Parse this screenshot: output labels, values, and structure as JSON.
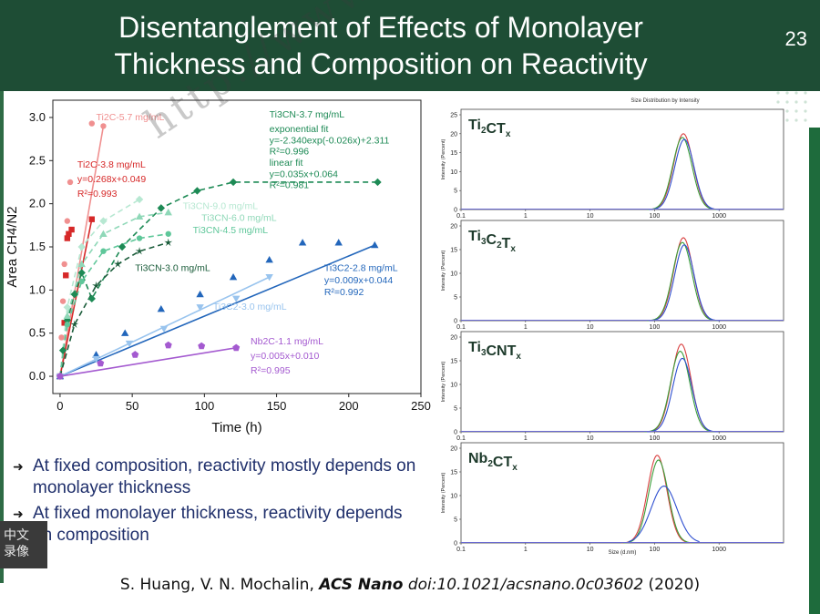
{
  "slide": {
    "title_line1": "Disentanglement of Effects of Monolayer",
    "title_line2": "Thickness and Composition on Reactivity",
    "page_number": "23",
    "bullets": [
      "At fixed composition, reactivity mostly depends on monolayer thickness",
      "At fixed monolayer thickness, reactivity depends on composition"
    ],
    "citation": {
      "authors": "S. Huang, V. N. Mochalin,",
      "journal": "ACS Nano",
      "doi": "doi:10.1021/acsnano.0c03602",
      "year": "(2020)"
    },
    "watermark": "http://www.nanomxenes.com",
    "stamp_text": "中文 录像"
  },
  "colors": {
    "title_bg": "#1e4d35",
    "ti2c_red": "#d62828",
    "ti2c_pink": "#f09090",
    "ti3cn_green": "#1d8a55",
    "ti3cn_light": "#8fd8b8",
    "ti3c2_blue": "#2266bb",
    "ti3c2_light": "#99c4ee",
    "nb2c_purple": "#a45ad0"
  },
  "chart_data": [
    {
      "type": "scatter",
      "xlabel": "Time (h)",
      "ylabel": "Area CH4/N2",
      "xlim": [
        -5,
        250
      ],
      "ylim": [
        -0.2,
        3.2
      ],
      "xticks": [
        "0",
        "50",
        "100",
        "150",
        "200",
        "250"
      ],
      "yticks": [
        "0.0",
        "0.5",
        "1.0",
        "1.5",
        "2.0",
        "2.5",
        "3.0"
      ],
      "series": [
        {
          "name": "Ti2C-5.7 mg/mL",
          "color": "#f09090",
          "marker": "circle",
          "x": [
            0,
            1,
            2,
            3,
            5,
            7,
            22,
            30
          ],
          "y": [
            0,
            0.45,
            0.87,
            1.3,
            1.8,
            2.25,
            2.93,
            2.9
          ],
          "fit": "line"
        },
        {
          "name": "Ti2C-3.8 mg/mL",
          "color": "#d62828",
          "marker": "square",
          "x": [
            0,
            3,
            4,
            5,
            6,
            8,
            22
          ],
          "y": [
            0,
            0.62,
            1.17,
            1.6,
            1.65,
            1.7,
            1.82
          ],
          "fit_label": [
            "y=0.268x+0.049",
            "R²=0.993"
          ],
          "fit": "line"
        },
        {
          "name": "Ti3CN-3.7 mg/mL",
          "color": "#1d8a55",
          "marker": "diamond",
          "x": [
            0,
            2,
            5,
            10,
            15,
            22,
            43,
            70,
            95,
            120,
            220
          ],
          "y": [
            0,
            0.3,
            0.65,
            0.95,
            1.2,
            0.9,
            1.5,
            1.95,
            2.15,
            2.25,
            2.25
          ],
          "fit_label": [
            "exponential fit",
            "y=-2.340exp(-0.026x)+2.311",
            "R²=0.996",
            "linear fit",
            "y=0.035x+0.064",
            "R²=0.981"
          ],
          "fit": "exponential"
        },
        {
          "name": "Ti3CN-9.0 mg/mL",
          "color": "#b7e8d2",
          "marker": "diamond",
          "x": [
            0,
            5,
            15,
            30,
            55
          ],
          "y": [
            0,
            0.8,
            1.5,
            1.8,
            2.05
          ],
          "fit": "exponential"
        },
        {
          "name": "Ti3CN-6.0 mg/mL",
          "color": "#8fd8b8",
          "marker": "triangle",
          "x": [
            0,
            5,
            15,
            30,
            55,
            75
          ],
          "y": [
            0,
            0.7,
            1.3,
            1.65,
            1.85,
            1.9
          ],
          "fit": "exponential"
        },
        {
          "name": "Ti3CN-4.5 mg/mL",
          "color": "#5fc79a",
          "marker": "circle",
          "x": [
            0,
            5,
            15,
            30,
            55,
            75
          ],
          "y": [
            0,
            0.6,
            1.1,
            1.45,
            1.6,
            1.65
          ],
          "fit": "exponential"
        },
        {
          "name": "Ti3CN-3.0 mg/mL",
          "color": "#1a5c3a",
          "marker": "star",
          "x": [
            0,
            10,
            25,
            40,
            55,
            75
          ],
          "y": [
            0,
            0.6,
            1.05,
            1.3,
            1.45,
            1.55
          ],
          "fit": "exponential"
        },
        {
          "name": "Ti3C2-2.8 mg/mL",
          "color": "#2266bb",
          "marker": "triangle",
          "x": [
            0,
            25,
            45,
            70,
            97,
            120,
            145,
            168,
            193,
            218
          ],
          "y": [
            0,
            0.25,
            0.5,
            0.78,
            0.95,
            1.15,
            1.35,
            1.55,
            1.55,
            1.52
          ],
          "fit_label": [
            "y=0.009x+0.044",
            "R²=0.992"
          ],
          "fit": "line"
        },
        {
          "name": "Ti3C2-3.0 mg/mL",
          "color": "#99c4ee",
          "marker": "triangle-down",
          "x": [
            0,
            25,
            48,
            72,
            97,
            122,
            145
          ],
          "y": [
            0,
            0.2,
            0.38,
            0.55,
            0.8,
            0.9,
            1.15
          ],
          "fit": "line"
        },
        {
          "name": "Nb2C-1.1 mg/mL",
          "color": "#a45ad0",
          "marker": "pentagon",
          "x": [
            0,
            28,
            52,
            75,
            98,
            122
          ],
          "y": [
            0,
            0.15,
            0.25,
            0.36,
            0.35,
            0.33
          ],
          "fit_label": [
            "y=0.005x+0.010",
            "R²=0.995"
          ],
          "fit": "line"
        }
      ]
    },
    {
      "type": "line",
      "title": "Size Distribution by Intensity",
      "xlabel": "Size (d.nm)",
      "ylabel": "Intensity (Percent)",
      "x_scale": "log",
      "xlim": [
        0.1,
        10000
      ],
      "xticks": [
        "0.1",
        "1",
        "10",
        "100",
        "1000"
      ],
      "panels": [
        {
          "label": "Ti2CTx",
          "yticks": [
            "0",
            "5",
            "10",
            "15",
            "20",
            "25"
          ],
          "ymax": 25,
          "peaks": [
            280,
            270,
            290
          ],
          "heights": [
            20,
            19,
            18.5
          ]
        },
        {
          "label": "Ti3C2Tx",
          "yticks": [
            "0",
            "5",
            "10",
            "15",
            "20"
          ],
          "ymax": 20,
          "peaks": [
            280,
            270,
            290
          ],
          "heights": [
            17.5,
            16.5,
            16
          ]
        },
        {
          "label": "Ti3CNTx",
          "yticks": [
            "0",
            "5",
            "10",
            "15",
            "20"
          ],
          "ymax": 20,
          "peaks": [
            260,
            250,
            270
          ],
          "heights": [
            18.5,
            17,
            15.5
          ]
        },
        {
          "label": "Nb2CTx",
          "yticks": [
            "0",
            "5",
            "10",
            "15",
            "20"
          ],
          "ymax": 20,
          "peaks": [
            110,
            115,
            140
          ],
          "heights": [
            18.5,
            17.5,
            12
          ]
        }
      ],
      "colors": [
        "#d94040",
        "#3a9e3a",
        "#2e4fd0"
      ]
    }
  ]
}
